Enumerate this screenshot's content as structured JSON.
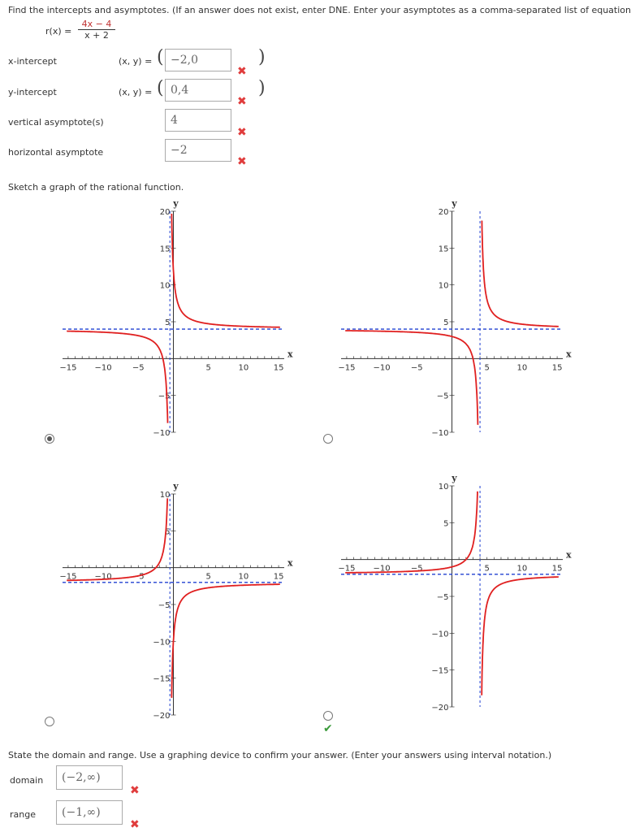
{
  "instructions": "Find the intercepts and asymptotes. (If an answer does not exist, enter DNE. Enter your asymptotes as a comma-separated list of equations",
  "function": {
    "name": "r(x) =",
    "numerator": "4x − 4",
    "denominator": "x + 2"
  },
  "rows": [
    {
      "label": "x-intercept",
      "prefix": "(x, y) =",
      "value": "−2,0",
      "paren": true
    },
    {
      "label": "y-intercept",
      "prefix": "(x, y) =",
      "value": "0,4",
      "paren": true
    },
    {
      "label": "vertical asymptote(s)",
      "prefix": "",
      "value": "4",
      "paren": false
    },
    {
      "label": "horizontal asymptote",
      "prefix": "",
      "value": "−2",
      "paren": false
    }
  ],
  "sketch_prompt": "Sketch a graph of the rational function.",
  "graphs": [
    {
      "selected": true,
      "correct": false,
      "x_ticks": [
        "−15",
        "−10",
        "−5",
        "5",
        "10",
        "15"
      ],
      "y_ticks": [
        "20",
        "15",
        "10",
        "5",
        "−5",
        "−10"
      ]
    },
    {
      "selected": false,
      "correct": false,
      "x_ticks": [
        "−15",
        "−10",
        "−5",
        "5",
        "10",
        "15"
      ],
      "y_ticks": [
        "20",
        "15",
        "10",
        "5",
        "−5",
        "−10"
      ]
    },
    {
      "selected": false,
      "correct": false,
      "x_ticks": [
        "−15",
        "−10",
        "−5",
        "5",
        "10",
        "15"
      ],
      "y_ticks": [
        "10",
        "5",
        "−5",
        "−10",
        "−15",
        "−20"
      ]
    },
    {
      "selected": false,
      "correct": true,
      "x_ticks": [
        "−15",
        "−10",
        "−5",
        "5",
        "10",
        "15"
      ],
      "y_ticks": [
        "10",
        "5",
        "−5",
        "−10",
        "−15",
        "−20"
      ]
    }
  ],
  "axis_labels": {
    "x": "x",
    "y": "y"
  },
  "domain_prompt": "State the domain and range. Use a graphing device to confirm your answer. (Enter your answers using interval notation.)",
  "domain": {
    "label": "domain",
    "value": "(−2,∞)"
  },
  "range": {
    "label": "range",
    "value": "(−1,∞)"
  },
  "colors": {
    "curve": "#e02020",
    "asymptote": "#2040d0",
    "wrong": "#e03c3c",
    "right": "#3a9a3a"
  }
}
